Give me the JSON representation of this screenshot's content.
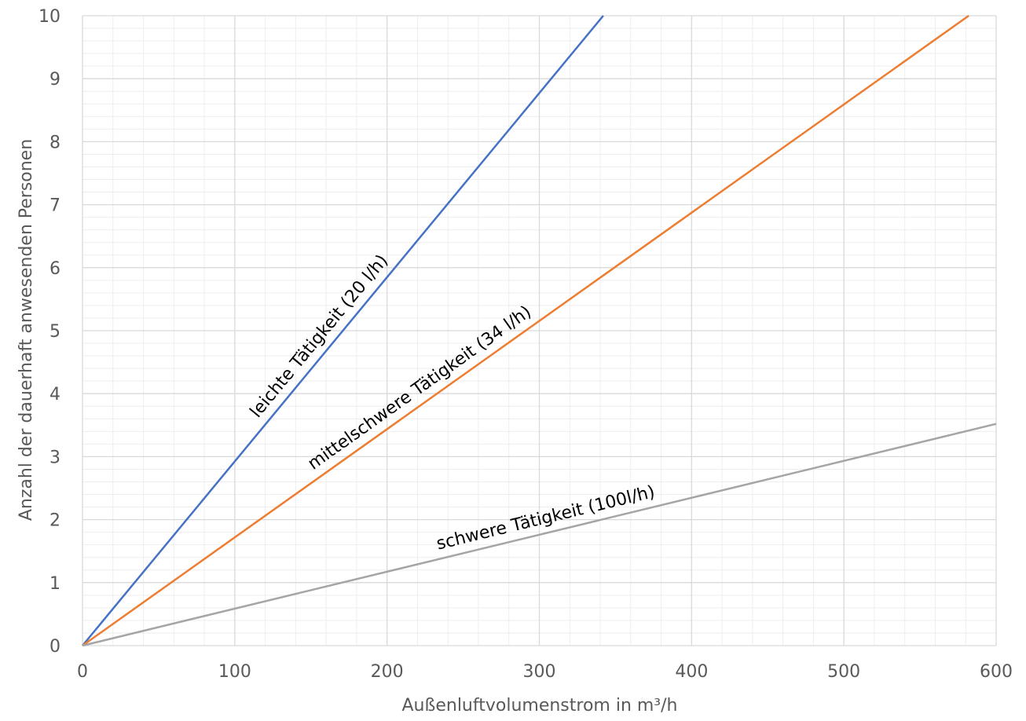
{
  "chart_data": {
    "type": "line",
    "title": "",
    "xlabel": "Außenluftvolumenstrom  in m³/h",
    "ylabel": "Anzahl der dauerhaft anwesenden Personen",
    "xlim": [
      0,
      600
    ],
    "ylim": [
      0,
      10
    ],
    "x_ticks": [
      0,
      100,
      200,
      300,
      400,
      500,
      600
    ],
    "y_ticks": [
      0,
      1,
      2,
      3,
      4,
      5,
      6,
      7,
      8,
      9,
      10
    ],
    "grid": true,
    "series": [
      {
        "name": "leichte Tätigkeit (20 l/h)",
        "color": "#4472C4",
        "label_at_x": 120,
        "points": [
          [
            0,
            0
          ],
          [
            342,
            10
          ]
        ]
      },
      {
        "name": "mittelschwere Tätigkeit (34 l/h)",
        "color": "#ED7D31",
        "label_at_x": 155,
        "points": [
          [
            0,
            0
          ],
          [
            582,
            10
          ]
        ]
      },
      {
        "name": "schwere Tätigkeit (100l/h)",
        "color": "#A5A5A5",
        "label_at_x": 235,
        "points": [
          [
            0,
            0
          ],
          [
            600,
            3.52
          ]
        ]
      }
    ]
  }
}
